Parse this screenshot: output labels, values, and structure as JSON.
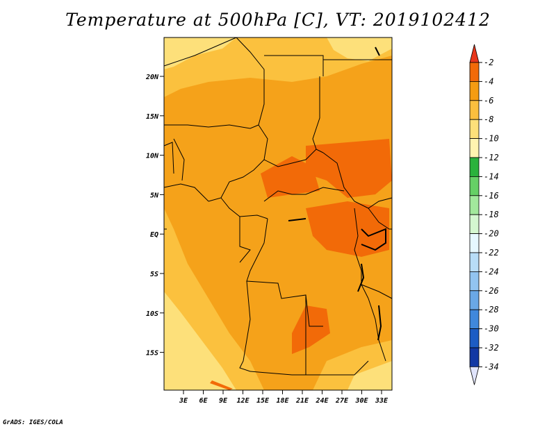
{
  "title": "Temperature at 500hPa [C], VT: 2019102412",
  "credit": "GrADS: IGES/COLA",
  "lat_labels": [
    "20N",
    "15N",
    "10N",
    "5N",
    "EQ",
    "5S",
    "10S",
    "15S"
  ],
  "lon_labels": [
    "3E",
    "6E",
    "9E",
    "12E",
    "15E",
    "18E",
    "21E",
    "24E",
    "27E",
    "30E",
    "33E"
  ],
  "colorbar": {
    "levels": [
      "-2",
      "-4",
      "-6",
      "-8",
      "-10",
      "-12",
      "-14",
      "-16",
      "-18",
      "-20",
      "-22",
      "-24",
      "-26",
      "-28",
      "-30",
      "-32",
      "-34"
    ],
    "colors": [
      "#e8361c",
      "#f26a08",
      "#f59c12",
      "#fbbf3e",
      "#fde07a",
      "#fff4b0",
      "#2ab23c",
      "#66d066",
      "#a2e89c",
      "#d4f7d0",
      "#e6f8ff",
      "#b8ddf7",
      "#92c4f0",
      "#6aa8e6",
      "#4088dc",
      "#1c5cc4",
      "#1238a4",
      "#0c1c74",
      "#e0e4fb"
    ]
  },
  "colors": {
    "warm_band": "#f5a21a",
    "mid_band": "#fbc13e",
    "cool_band": "#fde07a",
    "hot_band": "#f26a08",
    "border_line": "#000000"
  }
}
